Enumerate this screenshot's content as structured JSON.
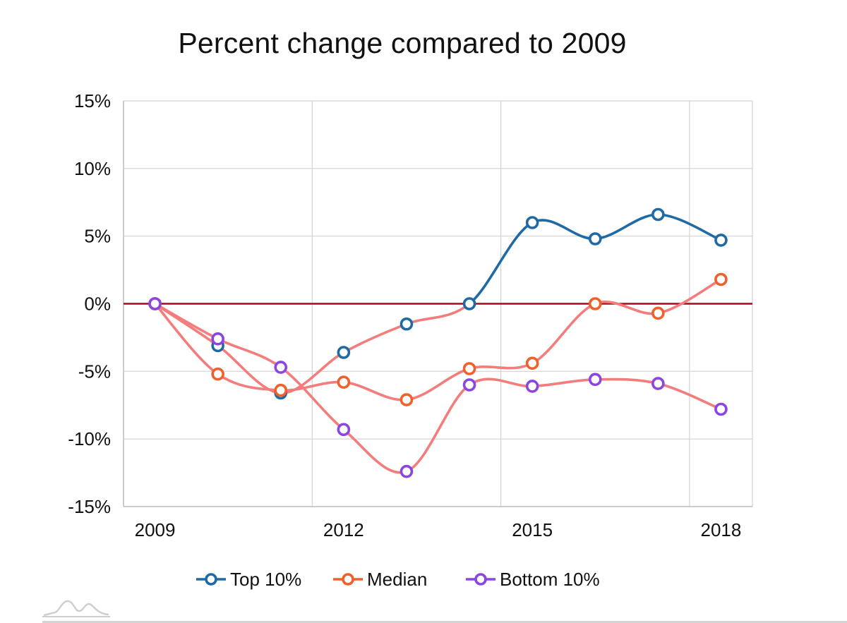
{
  "chart_data": {
    "type": "line",
    "title": "Percent change compared to 2009",
    "xlabel": "",
    "ylabel": "",
    "xlim": [
      2008.5,
      2018.5
    ],
    "ylim": [
      -15,
      15
    ],
    "x_ticks": [
      2009,
      2012,
      2015,
      2018
    ],
    "x_tick_labels": [
      "2009",
      "2012",
      "2015",
      "2018"
    ],
    "y_ticks": [
      -15,
      -10,
      -5,
      0,
      5,
      10,
      15
    ],
    "y_tick_labels": [
      "-15%",
      "-10%",
      "-5%",
      "0%",
      "5%",
      "10%",
      "15%"
    ],
    "grid": true,
    "reference_line": {
      "y": 0,
      "color": "#a50a1c"
    },
    "legend_position": "bottom",
    "connector_color": "#f47c7c",
    "x": [
      2009,
      2010,
      2011,
      2012,
      2013,
      2014,
      2015,
      2016,
      2017,
      2018
    ],
    "series": [
      {
        "name": "Top 10%",
        "color": "#1f6aa5",
        "values": [
          0,
          -3.1,
          -6.6,
          -3.6,
          -1.5,
          0,
          6.0,
          4.8,
          6.6,
          4.7
        ]
      },
      {
        "name": "Median",
        "color": "#f0602a",
        "values": [
          0,
          -5.2,
          -6.4,
          -5.8,
          -7.1,
          -4.8,
          -4.4,
          0,
          -0.7,
          1.8
        ]
      },
      {
        "name": "Bottom 10%",
        "color": "#8b45e0",
        "values": [
          0,
          -2.6,
          -4.7,
          -9.3,
          -12.4,
          -6.0,
          -6.1,
          -5.6,
          -5.9,
          -7.8
        ]
      }
    ]
  }
}
